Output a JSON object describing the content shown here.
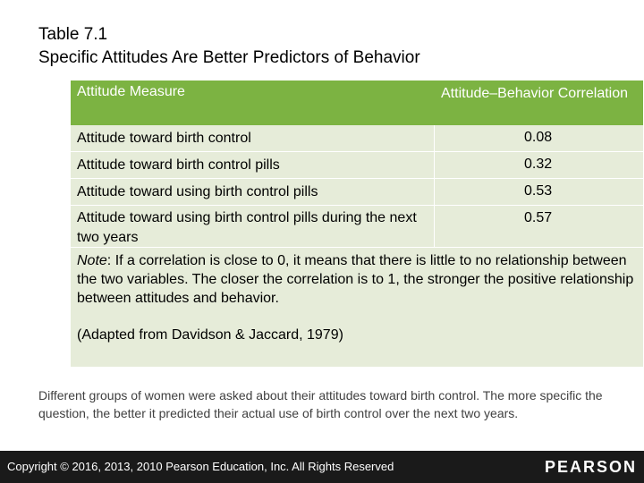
{
  "title": {
    "line1": "Table 7.1",
    "line2": "Specific Attitudes Are Better Predictors of Behavior"
  },
  "table": {
    "headers": [
      "Attitude Measure",
      "Attitude–Behavior Correlation"
    ],
    "rows": [
      {
        "measure": "Attitude toward birth control",
        "correlation": "0.08"
      },
      {
        "measure": "Attitude toward birth control pills",
        "correlation": "0.32"
      },
      {
        "measure": "Attitude toward using birth control pills",
        "correlation": "0.53"
      },
      {
        "measure": "Attitude toward using birth control pills during the next two years",
        "correlation": "0.57"
      }
    ],
    "note_label": "Note",
    "note_text": ": If a correlation is close to 0, it means that there is little to no relationship between the two variables. The closer the correlation is to 1, the stronger the positive relationship between attitudes and behavior.",
    "citation": "(Adapted from Davidson & Jaccard, 1979)"
  },
  "caption": "Different groups of women were asked about their attitudes toward birth control. The more specific the question, the better it predicted their actual use of birth control over the next two years.",
  "footer": {
    "copyright": "Copyright © 2016, 2013, 2010 Pearson Education, Inc. All Rights Reserved",
    "brand": "PEARSON"
  },
  "colors": {
    "header_bg": "#7cb342",
    "cell_bg": "#e6ecd9",
    "footer_bg": "#1a1a1a"
  }
}
